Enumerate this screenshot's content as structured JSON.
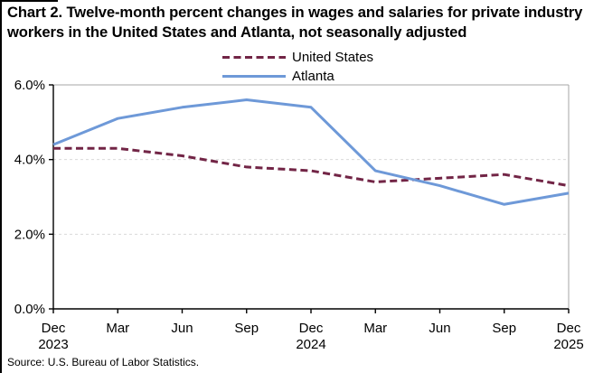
{
  "source": "Source: U.S. Bureau of Labor Statistics.",
  "chart_data": {
    "type": "line",
    "title": "Chart 2. Twelve-month percent changes in wages and salaries for private industry workers in the United States and Atlanta, not seasonally adjusted",
    "xlabel": "",
    "ylabel": "",
    "ylim": [
      0,
      6
    ],
    "y_tick_labels": [
      "0.0%",
      "2.0%",
      "4.0%",
      "6.0%"
    ],
    "grid_y_values": [
      2,
      4
    ],
    "grid_style": "dashed light gray, horizontal only",
    "legend_position": "top center",
    "x_labels": [
      {
        "month": "Dec",
        "year": "2023"
      },
      {
        "month": "Mar",
        "year": ""
      },
      {
        "month": "Jun",
        "year": ""
      },
      {
        "month": "Sep",
        "year": ""
      },
      {
        "month": "Dec",
        "year": "2024"
      },
      {
        "month": "Mar",
        "year": ""
      },
      {
        "month": "Jun",
        "year": ""
      },
      {
        "month": "Sep",
        "year": ""
      },
      {
        "month": "Dec",
        "year": "2025"
      }
    ],
    "series": [
      {
        "name": "United States",
        "color": "#722546",
        "style": "dashed",
        "values": [
          4.3,
          4.3,
          4.1,
          3.8,
          3.7,
          3.4,
          3.5,
          3.6,
          3.3
        ]
      },
      {
        "name": "Atlanta",
        "color": "#6E99D8",
        "style": "solid",
        "values": [
          4.4,
          5.1,
          5.4,
          5.6,
          5.4,
          3.7,
          3.3,
          2.8,
          3.1
        ]
      }
    ],
    "axis_color": "#000000",
    "plot_border_color": "#A6A6A6",
    "gridline_color": "#D9D9D9"
  }
}
